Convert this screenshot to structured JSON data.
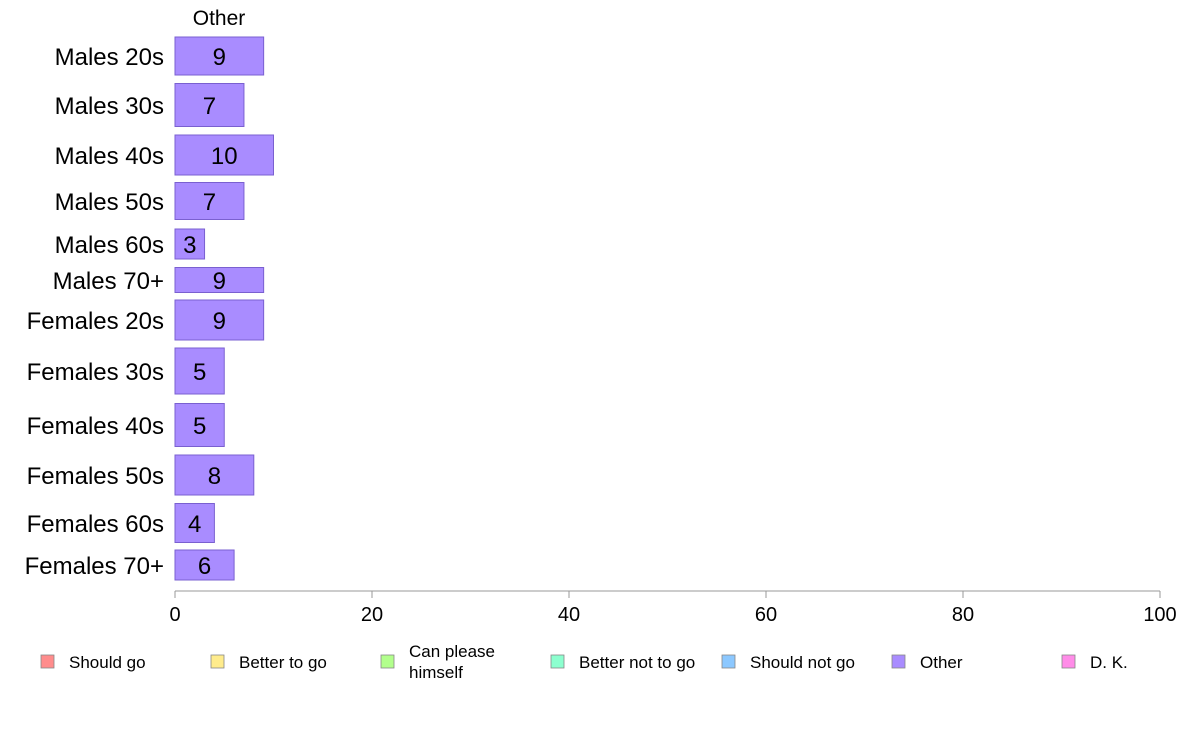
{
  "chart_data": {
    "type": "bar",
    "orientation": "horizontal",
    "stacked": true,
    "column_header": "Other",
    "categories": [
      "Males 20s",
      "Males 30s",
      "Males 40s",
      "Males 50s",
      "Males 60s",
      "Males 70+",
      "Females 20s",
      "Females 30s",
      "Females 40s",
      "Females 50s",
      "Females 60s",
      "Females 70+"
    ],
    "series": [
      {
        "name": "Other",
        "values": [
          9,
          7,
          10,
          7,
          3,
          9,
          9,
          5,
          5,
          8,
          4,
          6
        ],
        "color": "#a98cff"
      }
    ],
    "legend": [
      {
        "label": "Should go",
        "color": "#ff8c8c"
      },
      {
        "label": "Better to go",
        "color": "#ffec8c"
      },
      {
        "label": "Can please himself",
        "color": "#b2ff8c"
      },
      {
        "label": "Better not to go",
        "color": "#8cffcf"
      },
      {
        "label": "Should not go",
        "color": "#8cc8ff"
      },
      {
        "label": "Other",
        "color": "#a98cff"
      },
      {
        "label": "D. K.",
        "color": "#ff8ce8"
      }
    ],
    "x_ticks": [
      0,
      20,
      40,
      60,
      80,
      100
    ],
    "xlim": [
      0,
      100
    ],
    "legend_position": "bottom",
    "grid": false
  }
}
